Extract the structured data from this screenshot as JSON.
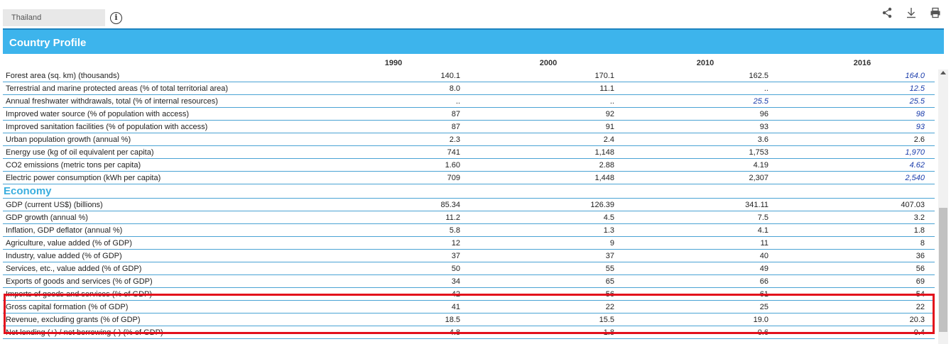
{
  "country_select": {
    "value": "Thailand"
  },
  "toolbar": {
    "icons": [
      "share-icon",
      "download-icon",
      "print-icon"
    ]
  },
  "header": {
    "title": "Country Profile"
  },
  "table": {
    "columns": [
      "1990",
      "2000",
      "2010",
      "2016"
    ],
    "environment_rows": [
      {
        "label": "Forest area (sq. km) (thousands)",
        "values": [
          "140.1",
          "170.1",
          "162.5",
          "164.0"
        ],
        "estimated": [
          false,
          false,
          false,
          true
        ]
      },
      {
        "label": "Terrestrial and marine protected areas (% of total territorial area)",
        "values": [
          "8.0",
          "11.1",
          "..",
          "12.5"
        ],
        "estimated": [
          false,
          false,
          false,
          true
        ]
      },
      {
        "label": "Annual freshwater withdrawals, total (% of internal resources)",
        "values": [
          "..",
          "..",
          "25.5",
          "25.5"
        ],
        "estimated": [
          false,
          false,
          true,
          true
        ]
      },
      {
        "label": "Improved water source (% of population with access)",
        "values": [
          "87",
          "92",
          "96",
          "98"
        ],
        "estimated": [
          false,
          false,
          false,
          true
        ]
      },
      {
        "label": "Improved sanitation facilities (% of population with access)",
        "values": [
          "87",
          "91",
          "93",
          "93"
        ],
        "estimated": [
          false,
          false,
          false,
          true
        ]
      },
      {
        "label": "Urban population growth (annual %)",
        "values": [
          "2.3",
          "2.4",
          "3.6",
          "2.6"
        ],
        "estimated": [
          false,
          false,
          false,
          false
        ]
      },
      {
        "label": "Energy use (kg of oil equivalent per capita)",
        "values": [
          "741",
          "1,148",
          "1,753",
          "1,970"
        ],
        "estimated": [
          false,
          false,
          false,
          true
        ]
      },
      {
        "label": "CO2 emissions (metric tons per capita)",
        "values": [
          "1.60",
          "2.88",
          "4.19",
          "4.62"
        ],
        "estimated": [
          false,
          false,
          false,
          true
        ]
      },
      {
        "label": "Electric power consumption (kWh per capita)",
        "values": [
          "709",
          "1,448",
          "2,307",
          "2,540"
        ],
        "estimated": [
          false,
          false,
          false,
          true
        ]
      }
    ],
    "economy_section": "Economy",
    "economy_rows": [
      {
        "label": "GDP (current US$) (billions)",
        "values": [
          "85.34",
          "126.39",
          "341.11",
          "407.03"
        ],
        "estimated": [
          false,
          false,
          false,
          false
        ]
      },
      {
        "label": "GDP growth (annual %)",
        "values": [
          "11.2",
          "4.5",
          "7.5",
          "3.2"
        ],
        "estimated": [
          false,
          false,
          false,
          false
        ]
      },
      {
        "label": "Inflation, GDP deflator (annual %)",
        "values": [
          "5.8",
          "1.3",
          "4.1",
          "1.8"
        ],
        "estimated": [
          false,
          false,
          false,
          false
        ]
      },
      {
        "label": "Agriculture, value added (% of GDP)",
        "values": [
          "12",
          "9",
          "11",
          "8"
        ],
        "estimated": [
          false,
          false,
          false,
          false
        ]
      },
      {
        "label": "Industry, value added (% of GDP)",
        "values": [
          "37",
          "37",
          "40",
          "36"
        ],
        "estimated": [
          false,
          false,
          false,
          false
        ]
      },
      {
        "label": "Services, etc., value added (% of GDP)",
        "values": [
          "50",
          "55",
          "49",
          "56"
        ],
        "estimated": [
          false,
          false,
          false,
          false
        ]
      },
      {
        "label": "Exports of goods and services (% of GDP)",
        "values": [
          "34",
          "65",
          "66",
          "69"
        ],
        "estimated": [
          false,
          false,
          false,
          false
        ]
      },
      {
        "label": "Imports of goods and services (% of GDP)",
        "values": [
          "42",
          "56",
          "61",
          "54"
        ],
        "estimated": [
          false,
          false,
          false,
          false
        ]
      },
      {
        "label": "Gross capital formation (% of GDP)",
        "values": [
          "41",
          "22",
          "25",
          "22"
        ],
        "estimated": [
          false,
          false,
          false,
          false
        ]
      },
      {
        "label": "Revenue, excluding grants (% of GDP)",
        "values": [
          "18.5",
          "15.5",
          "19.0",
          "20.3"
        ],
        "estimated": [
          false,
          false,
          false,
          false
        ]
      },
      {
        "label": "Net lending (+) / net borrowing (-) (% of GDP)",
        "values": [
          "4.8",
          "-1.8",
          "-0.6",
          "0.4"
        ],
        "estimated": [
          false,
          false,
          false,
          false
        ]
      }
    ]
  },
  "colors": {
    "header": "#3db4ec",
    "section": "#3aaedf",
    "estimate_value": "#1a3cab",
    "highlight": "#e3101c"
  }
}
